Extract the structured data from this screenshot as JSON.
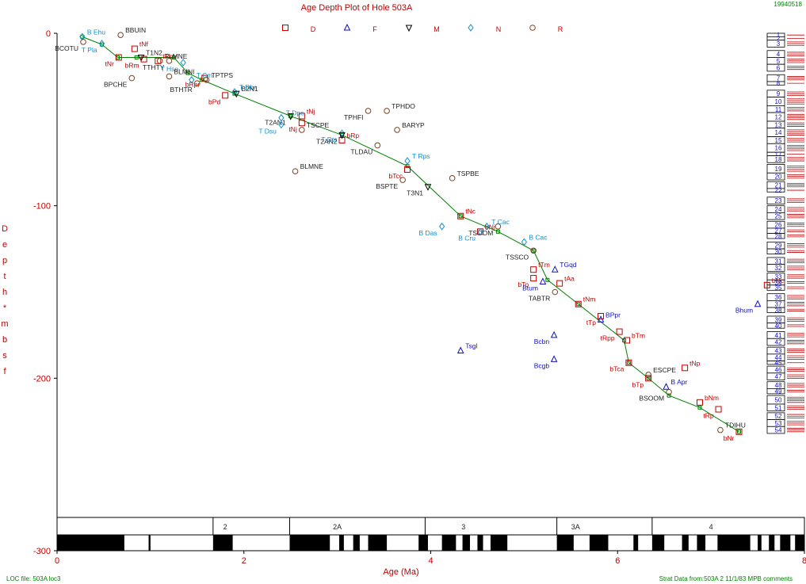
{
  "header": {
    "title": "Age Depth Plot of Hole 503A",
    "date_stamp": "19940518",
    "loc_file": "LOC file: 503A loc3",
    "strat_data": "Strat Data from:503A 2 11/1/83 MPB comments"
  },
  "legend_items": [
    {
      "symbol": "square",
      "color": "#c00000",
      "letter": "D"
    },
    {
      "symbol": "triangle-up",
      "color": "#1010c0",
      "letter": "F"
    },
    {
      "symbol": "triangle-down",
      "color": "#000000",
      "letter": "M"
    },
    {
      "symbol": "diamond",
      "color": "#1090d0",
      "letter": "N"
    },
    {
      "symbol": "circle",
      "color": "#804020",
      "letter": "R"
    }
  ],
  "colors": {
    "red": "#c00000",
    "blue": "#1010c0",
    "cyan": "#1090d0",
    "brown": "#804020",
    "black": "#000000",
    "green": "#008000",
    "label_red": "#c00000",
    "label_green": "#008000"
  },
  "chart_data": {
    "type": "scatter",
    "title": "Age Depth Plot of Hole 503A",
    "xlabel": "Age (Ma)",
    "ylabel": "Depth * mbsf",
    "xlim": [
      0,
      8
    ],
    "ylim": [
      0,
      -300
    ],
    "x_ticks": [
      0,
      2,
      4,
      6,
      8
    ],
    "y_ticks": [
      0,
      -100,
      -200,
      -300
    ],
    "line_of_correlation": [
      [
        0.27,
        -2
      ],
      [
        0.48,
        -6.5
      ],
      [
        0.65,
        -14
      ],
      [
        0.85,
        -14
      ],
      [
        1.25,
        -14
      ],
      [
        1.4,
        -23
      ],
      [
        1.55,
        -27
      ],
      [
        1.9,
        -35
      ],
      [
        2.5,
        -48
      ],
      [
        3.05,
        -59
      ],
      [
        3.75,
        -77
      ],
      [
        4.32,
        -106
      ],
      [
        4.72,
        -115
      ],
      [
        5.1,
        -126
      ],
      [
        5.25,
        -143
      ],
      [
        5.58,
        -157
      ],
      [
        6.07,
        -178
      ],
      [
        6.12,
        -191
      ],
      [
        6.33,
        -200
      ],
      [
        6.55,
        -210
      ],
      [
        6.88,
        -217
      ],
      [
        7.3,
        -231
      ]
    ],
    "points": [
      {
        "label": "B Ehu",
        "x": 0.27,
        "y": -2,
        "symbol": "diamond",
        "color": "cyan"
      },
      {
        "label": "T Pla",
        "x": 0.48,
        "y": -6,
        "symbol": "diamond",
        "color": "cyan"
      },
      {
        "label": "BBUIN",
        "x": 0.68,
        "y": -1,
        "symbol": "circle",
        "color": "brown"
      },
      {
        "label": "BCOTU",
        "x": 0.28,
        "y": -5,
        "symbol": "circle",
        "color": "brown"
      },
      {
        "label": "tNf",
        "x": 0.83,
        "y": -9,
        "symbol": "square",
        "color": "red"
      },
      {
        "label": "tNr",
        "x": 0.66,
        "y": -14,
        "symbol": "square",
        "color": "red"
      },
      {
        "label": "T1N2",
        "x": 0.9,
        "y": -14,
        "symbol": "triangle-down",
        "color": "black"
      },
      {
        "label": "bRm",
        "x": 0.93,
        "y": -15,
        "symbol": "square",
        "color": "red"
      },
      {
        "label": "tRm",
        "x": 1.08,
        "y": -16,
        "symbol": "square",
        "color": "red"
      },
      {
        "label": "TTHTY",
        "x": 1.2,
        "y": -16,
        "symbol": "circle",
        "color": "brown"
      },
      {
        "label": "TLMNE",
        "x": 1.1,
        "y": -16,
        "symbol": "circle",
        "color": "brown"
      },
      {
        "label": "T Hse",
        "x": 1.35,
        "y": -17,
        "symbol": "diamond",
        "color": "cyan"
      },
      {
        "label": "BLMNI",
        "x": 1.2,
        "y": -25,
        "symbol": "circle",
        "color": "brown"
      },
      {
        "label": "BPCHE",
        "x": 0.8,
        "y": -26,
        "symbol": "circle",
        "color": "brown"
      },
      {
        "label": "T Cm",
        "x": 1.44,
        "y": -27,
        "symbol": "diamond",
        "color": "cyan"
      },
      {
        "label": "bRpr",
        "x": 1.58,
        "y": -26,
        "symbol": "square",
        "color": "red"
      },
      {
        "label": "TPTPS",
        "x": 1.6,
        "y": -27,
        "symbol": "circle",
        "color": "brown"
      },
      {
        "label": "BTHTR",
        "x": 1.5,
        "y": -29,
        "symbol": "circle",
        "color": "brown"
      },
      {
        "label": "T Dbr",
        "x": 1.9,
        "y": -34,
        "symbol": "diamond",
        "color": "cyan"
      },
      {
        "label": "bPd",
        "x": 1.8,
        "y": -36,
        "symbol": "square",
        "color": "red"
      },
      {
        "label": "B2N1",
        "x": 1.92,
        "y": -35,
        "symbol": "triangle-down",
        "color": "black"
      },
      {
        "label": "T2AN1",
        "x": 2.5,
        "y": -48,
        "symbol": "triangle-down",
        "color": "black"
      },
      {
        "label": "tNj",
        "x": 2.62,
        "y": -48,
        "symbol": "square",
        "color": "red"
      },
      {
        "label": "tNj",
        "x": 2.62,
        "y": -52,
        "symbol": "square",
        "color": "red"
      },
      {
        "label": "T Dpe",
        "x": 2.4,
        "y": -49,
        "symbol": "diamond",
        "color": "cyan"
      },
      {
        "label": "T Dsu",
        "x": 2.4,
        "y": -53,
        "symbol": "diamond",
        "color": "cyan"
      },
      {
        "label": "TSCPE",
        "x": 2.62,
        "y": -56,
        "symbol": "circle",
        "color": "brown"
      },
      {
        "label": "T Dts",
        "x": 3.05,
        "y": -58,
        "symbol": "diamond",
        "color": "cyan"
      },
      {
        "label": "bRp",
        "x": 3.05,
        "y": -62,
        "symbol": "square",
        "color": "red"
      },
      {
        "label": "TPHFI",
        "x": 3.33,
        "y": -45,
        "symbol": "circle",
        "color": "brown"
      },
      {
        "label": "TPHDO",
        "x": 3.53,
        "y": -45,
        "symbol": "circle",
        "color": "brown"
      },
      {
        "label": "T2AN2",
        "x": 3.05,
        "y": -59,
        "symbol": "triangle-down",
        "color": "black"
      },
      {
        "label": "BARYP",
        "x": 3.64,
        "y": -56,
        "symbol": "circle",
        "color": "brown"
      },
      {
        "label": "TLDAU",
        "x": 3.43,
        "y": -65,
        "symbol": "circle",
        "color": "brown"
      },
      {
        "label": "T Rps",
        "x": 3.75,
        "y": -74,
        "symbol": "diamond",
        "color": "cyan"
      },
      {
        "label": "bTcc",
        "x": 3.75,
        "y": -79,
        "symbol": "square",
        "color": "red"
      },
      {
        "label": "BLMNE",
        "x": 2.55,
        "y": -80,
        "symbol": "circle",
        "color": "brown"
      },
      {
        "label": "BSPTE",
        "x": 3.7,
        "y": -85,
        "symbol": "circle",
        "color": "brown"
      },
      {
        "label": "TSPBE",
        "x": 4.23,
        "y": -84,
        "symbol": "circle",
        "color": "brown"
      },
      {
        "label": "T3N1",
        "x": 3.97,
        "y": -89,
        "symbol": "triangle-down",
        "color": "black"
      },
      {
        "label": "tNc",
        "x": 4.32,
        "y": -106,
        "symbol": "square",
        "color": "red"
      },
      {
        "label": "TSOOM",
        "x": 4.72,
        "y": -112,
        "symbol": "circle",
        "color": "brown"
      },
      {
        "label": "T Cac",
        "x": 4.6,
        "y": -112,
        "symbol": "diamond",
        "color": "cyan"
      },
      {
        "label": "B Das",
        "x": 4.12,
        "y": -112,
        "symbol": "diamond",
        "color": "cyan"
      },
      {
        "label": "bNj",
        "x": 4.53,
        "y": -115,
        "symbol": "square",
        "color": "red"
      },
      {
        "label": "B Cru",
        "x": 4.53,
        "y": -115,
        "symbol": "diamond",
        "color": "cyan"
      },
      {
        "label": "B Cac",
        "x": 5.0,
        "y": -121,
        "symbol": "diamond",
        "color": "cyan"
      },
      {
        "label": "TSSCO",
        "x": 5.1,
        "y": -126,
        "symbol": "circle",
        "color": "brown"
      },
      {
        "label": "tTm",
        "x": 5.1,
        "y": -137,
        "symbol": "square",
        "color": "red"
      },
      {
        "label": "bTo",
        "x": 5.1,
        "y": -142,
        "symbol": "square",
        "color": "red"
      },
      {
        "label": "TGqd",
        "x": 5.33,
        "y": -137,
        "symbol": "triangle-up",
        "color": "blue"
      },
      {
        "label": "Btum",
        "x": 5.2,
        "y": -144,
        "symbol": "triangle-up",
        "color": "blue"
      },
      {
        "label": "tAa",
        "x": 5.38,
        "y": -145,
        "symbol": "square",
        "color": "red"
      },
      {
        "label": "TABTR",
        "x": 5.33,
        "y": -150,
        "symbol": "circle",
        "color": "brown"
      },
      {
        "label": "tNm",
        "x": 5.58,
        "y": -157,
        "symbol": "square",
        "color": "red"
      },
      {
        "label": "tTp",
        "x": 5.82,
        "y": -164,
        "symbol": "square",
        "color": "red"
      },
      {
        "label": "BPpr",
        "x": 5.82,
        "y": -166,
        "symbol": "triangle-up",
        "color": "blue"
      },
      {
        "label": "tRpp",
        "x": 6.02,
        "y": -173,
        "symbol": "square",
        "color": "red"
      },
      {
        "label": "bTm",
        "x": 6.1,
        "y": -178,
        "symbol": "square",
        "color": "red"
      },
      {
        "label": "Bcbn",
        "x": 5.32,
        "y": -175,
        "symbol": "triangle-up",
        "color": "blue"
      },
      {
        "label": "Tsgl",
        "x": 4.32,
        "y": -184,
        "symbol": "triangle-up",
        "color": "blue"
      },
      {
        "label": "Bcgb",
        "x": 5.32,
        "y": -189,
        "symbol": "triangle-up",
        "color": "blue"
      },
      {
        "label": "ESCPE",
        "x": 6.33,
        "y": -198,
        "symbol": "circle",
        "color": "brown"
      },
      {
        "label": "bTca",
        "x": 6.12,
        "y": -191,
        "symbol": "square",
        "color": "red"
      },
      {
        "label": "tNp",
        "x": 6.72,
        "y": -194,
        "symbol": "square",
        "color": "red"
      },
      {
        "label": "bTp",
        "x": 6.33,
        "y": -200,
        "symbol": "square",
        "color": "red"
      },
      {
        "label": "B Apr",
        "x": 6.52,
        "y": -205,
        "symbol": "triangle-up",
        "color": "blue"
      },
      {
        "label": "BSOOM",
        "x": 6.55,
        "y": -208,
        "symbol": "circle",
        "color": "brown"
      },
      {
        "label": "bNm",
        "x": 6.88,
        "y": -214,
        "symbol": "square",
        "color": "red"
      },
      {
        "label": "tRp",
        "x": 7.08,
        "y": -218,
        "symbol": "square",
        "color": "red"
      },
      {
        "label": "TDIHU",
        "x": 7.1,
        "y": -230,
        "symbol": "circle",
        "color": "brown"
      },
      {
        "label": "bNr",
        "x": 7.3,
        "y": -231,
        "symbol": "square",
        "color": "red"
      },
      {
        "label": "bNc",
        "x": 7.6,
        "y": -146,
        "symbol": "square",
        "color": "red"
      },
      {
        "label": "Bhum",
        "x": 7.5,
        "y": -157,
        "symbol": "triangle-up",
        "color": "blue"
      }
    ],
    "cores": [
      {
        "num": "1",
        "top": 0,
        "bottom": 2
      },
      {
        "num": "2",
        "top": 2,
        "bottom": 4
      },
      {
        "num": "3",
        "top": 4,
        "bottom": 8
      },
      {
        "num": "4",
        "top": 10,
        "bottom": 14
      },
      {
        "num": "5",
        "top": 14,
        "bottom": 18
      },
      {
        "num": "6",
        "top": 18,
        "bottom": 22
      },
      {
        "num": "7",
        "top": 24,
        "bottom": 28
      },
      {
        "num": "8",
        "top": 28,
        "bottom": 30
      },
      {
        "num": "9",
        "top": 33,
        "bottom": 37
      },
      {
        "num": "10",
        "top": 37,
        "bottom": 42
      },
      {
        "num": "11",
        "top": 42,
        "bottom": 46
      },
      {
        "num": "12",
        "top": 46,
        "bottom": 51
      },
      {
        "num": "13",
        "top": 51,
        "bottom": 55
      },
      {
        "num": "14",
        "top": 55,
        "bottom": 60
      },
      {
        "num": "15",
        "top": 60,
        "bottom": 64
      },
      {
        "num": "16",
        "top": 64,
        "bottom": 69
      },
      {
        "num": "17",
        "top": 69,
        "bottom": 71
      },
      {
        "num": "18",
        "top": 71,
        "bottom": 75
      },
      {
        "num": "19",
        "top": 76,
        "bottom": 81
      },
      {
        "num": "20",
        "top": 81,
        "bottom": 85
      },
      {
        "num": "21",
        "top": 86,
        "bottom": 90
      },
      {
        "num": "22",
        "top": 90,
        "bottom": 92
      },
      {
        "num": "23",
        "top": 95,
        "bottom": 99
      },
      {
        "num": "24",
        "top": 100,
        "bottom": 104
      },
      {
        "num": "25",
        "top": 104,
        "bottom": 108
      },
      {
        "num": "26",
        "top": 109,
        "bottom": 113
      },
      {
        "num": "27",
        "top": 113,
        "bottom": 116
      },
      {
        "num": "28",
        "top": 116,
        "bottom": 119
      },
      {
        "num": "29",
        "top": 121,
        "bottom": 125
      },
      {
        "num": "30",
        "top": 125,
        "bottom": 128
      },
      {
        "num": "31",
        "top": 130,
        "bottom": 134
      },
      {
        "num": "32",
        "top": 134,
        "bottom": 138
      },
      {
        "num": "33",
        "top": 139,
        "bottom": 143
      },
      {
        "num": "34",
        "top": 143,
        "bottom": 146
      },
      {
        "num": "35",
        "top": 146,
        "bottom": 149
      },
      {
        "num": "36",
        "top": 151,
        "bottom": 155
      },
      {
        "num": "37",
        "top": 155,
        "bottom": 159
      },
      {
        "num": "38",
        "top": 159,
        "bottom": 162
      },
      {
        "num": "39",
        "top": 164,
        "bottom": 168
      },
      {
        "num": "40",
        "top": 168,
        "bottom": 171
      },
      {
        "num": "41",
        "top": 173,
        "bottom": 177
      },
      {
        "num": "42",
        "top": 177,
        "bottom": 181
      },
      {
        "num": "43",
        "top": 182,
        "bottom": 186
      },
      {
        "num": "44",
        "top": 186,
        "bottom": 190
      },
      {
        "num": "45",
        "top": 190,
        "bottom": 192
      },
      {
        "num": "46",
        "top": 193,
        "bottom": 197
      },
      {
        "num": "47",
        "top": 197,
        "bottom": 201
      },
      {
        "num": "48",
        "top": 202,
        "bottom": 206
      },
      {
        "num": "49",
        "top": 206,
        "bottom": 209
      },
      {
        "num": "50",
        "top": 210,
        "bottom": 215
      },
      {
        "num": "51",
        "top": 215,
        "bottom": 219
      },
      {
        "num": "52",
        "top": 220,
        "bottom": 224
      },
      {
        "num": "53",
        "top": 224,
        "bottom": 228
      },
      {
        "num": "54",
        "top": 228,
        "bottom": 232
      }
    ],
    "chron_labels": [
      {
        "label": "2",
        "x": 1.8
      },
      {
        "label": "2A",
        "x": 3.0
      },
      {
        "label": "3",
        "x": 4.35
      },
      {
        "label": "3A",
        "x": 5.55
      },
      {
        "label": "4",
        "x": 7.0
      }
    ],
    "chron_dividers": [
      1.67,
      2.49,
      3.94,
      5.35,
      6.37
    ],
    "chron_black": [
      [
        -0.02,
        0.72
      ],
      [
        0.98,
        1.0
      ],
      [
        1.67,
        1.88
      ],
      [
        2.49,
        2.92
      ],
      [
        3.02,
        3.07
      ],
      [
        3.17,
        3.24
      ],
      [
        3.33,
        3.53
      ],
      [
        3.87,
        3.97
      ],
      [
        4.12,
        4.27
      ],
      [
        4.34,
        4.42
      ],
      [
        4.5,
        4.56
      ],
      [
        4.64,
        4.82
      ],
      [
        5.35,
        5.53
      ],
      [
        5.7,
        5.9
      ],
      [
        6.17,
        6.22
      ],
      [
        6.37,
        6.5
      ],
      [
        6.69,
        6.76
      ],
      [
        6.85,
        6.94
      ],
      [
        7.07,
        7.42
      ],
      [
        7.5,
        7.54
      ],
      [
        7.62,
        7.68
      ],
      [
        7.74,
        7.85
      ],
      [
        7.9,
        8.0
      ]
    ]
  }
}
